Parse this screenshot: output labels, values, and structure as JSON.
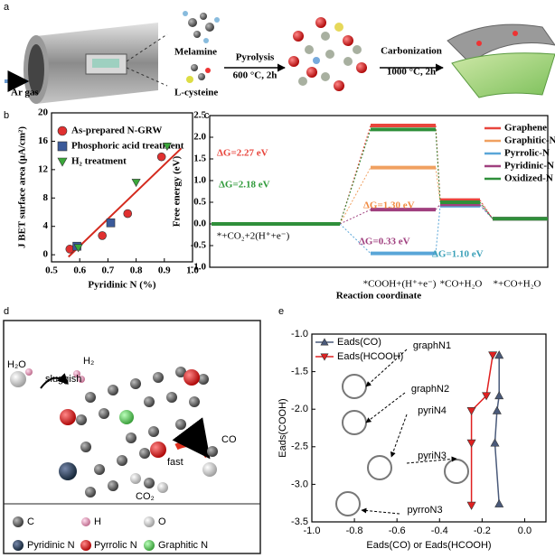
{
  "panels": {
    "a": {
      "label": "a",
      "texts": [
        "Ar gas",
        "Melamine",
        "L-cysteine",
        "Pyrolysis",
        "600 °C, 2h",
        "Carbonization",
        "1000 °C, 2h"
      ]
    },
    "d": {
      "label": "d",
      "texts": [
        "H₂O",
        "H₂",
        "sluggish",
        "fast",
        "CO",
        "CO₂"
      ],
      "legend": [
        "C",
        "H",
        "O",
        "Pyridinic N",
        "Pyrrolic N",
        "Graphitic N"
      ]
    }
  },
  "chart_data": [
    {
      "type": "scatter",
      "label": "b",
      "xlabel": "Pyridinic N (%)",
      "ylabel": "J BET surface area (μA/cm²)",
      "xlim": [
        0.5,
        1.0
      ],
      "xticks": [
        0.5,
        0.6,
        0.7,
        0.8,
        0.9,
        {
          "value": 1.0,
          "label": "1.0"
        }
      ],
      "ylim": [
        -1,
        20
      ],
      "yticks": [
        0,
        4,
        8,
        12,
        16,
        20
      ],
      "series": [
        {
          "name": "As-prepared N-GRW",
          "color": "#e03030",
          "marker": "circle",
          "x": [
            0.565,
            0.68,
            0.77,
            0.89
          ],
          "values": [
            0.8,
            2.7,
            5.8,
            13.8
          ]
        },
        {
          "name": "Phosphoric acid treatment",
          "color": "#3b5a9a",
          "marker": "square",
          "x": [
            0.59,
            0.71
          ],
          "values": [
            1.2,
            4.5
          ]
        },
        {
          "name": "H₂ treatment",
          "color": "#3aa83a",
          "marker": "triangle-down",
          "x": [
            0.595,
            0.8,
            0.91
          ],
          "values": [
            1.0,
            10.2,
            15.3
          ]
        }
      ],
      "fit": {
        "color": "#d42a1e",
        "x": [
          0.56,
          0.96
        ],
        "values": [
          -0.3,
          15
        ]
      }
    },
    {
      "type": "energy-profile",
      "label": "c",
      "xlabel": "Reaction coordinate",
      "ylabel": "Free energy (eV)",
      "categories": [
        "*+CO₂+2(H⁺+e⁻)",
        "*COOH+(H⁺+e⁻)",
        "*CO+H₂O",
        "*+CO+H₂O"
      ],
      "ylim": [
        -1.0,
        2.5
      ],
      "yticks": [
        {
          "value": -1.0,
          "label": "-1.0"
        },
        -0.5,
        {
          "value": 0.0,
          "label": "0.0"
        },
        0.5,
        {
          "value": 1.0,
          "label": "1.0"
        },
        1.5,
        {
          "value": 2.0,
          "label": "2.0"
        },
        2.5
      ],
      "series": [
        {
          "name": "Graphene",
          "color": "#e8453c",
          "values": [
            0,
            2.27,
            0.55,
            0.12
          ]
        },
        {
          "name": "Graphitic-N",
          "color": "#f0a060",
          "values": [
            0,
            1.3,
            0.5,
            0.12
          ]
        },
        {
          "name": "Pyrrolic-N",
          "color": "#5aa6d8",
          "values": [
            0,
            -0.68,
            0.42,
            0.12
          ]
        },
        {
          "name": "Pyridinic-N",
          "color": "#a0407f",
          "values": [
            0,
            0.33,
            0.45,
            0.12
          ]
        },
        {
          "name": "Oxidized-N",
          "color": "#2f8f3a",
          "values": [
            0,
            2.18,
            0.5,
            0.12
          ]
        }
      ],
      "annotations": [
        {
          "text": "ΔG=2.27 eV",
          "color": "#e8453c"
        },
        {
          "text": "ΔG=2.18 eV",
          "color": "#2f9a3a"
        },
        {
          "text": "ΔG=1.30 eV",
          "color": "#f08a40"
        },
        {
          "text": "ΔG=0.33 eV",
          "color": "#a0407f"
        },
        {
          "text": "ΔG=1.10 eV",
          "color": "#3aa0b8"
        }
      ]
    },
    {
      "type": "line",
      "label": "e",
      "xlabel": "Eads(CO) or Eads(HCOOH)",
      "ylabel": "Eads(COOH)",
      "xlim": [
        -1.0,
        0.1
      ],
      "xticks": [
        {
          "value": -1.0,
          "label": "-1.0"
        },
        -0.8,
        -0.6,
        -0.4,
        -0.2,
        {
          "value": 0.0,
          "label": "0.0"
        }
      ],
      "ylim": [
        -3.5,
        -1.0
      ],
      "yticks": [
        -3.5,
        {
          "value": -3.0,
          "label": "-3.0"
        },
        -2.5,
        {
          "value": -2.0,
          "label": "-2.0"
        },
        -1.5,
        {
          "value": -1.0,
          "label": "-1.0"
        }
      ],
      "series": [
        {
          "name": "Eads(CO)",
          "color": "#4a5a7a",
          "marker": "triangle-up",
          "x": [
            -0.12,
            -0.12,
            -0.13,
            -0.14,
            -0.12
          ],
          "values": [
            -1.28,
            -1.82,
            -2.02,
            -2.45,
            -3.26
          ]
        },
        {
          "name": "Eads(HCOOH)",
          "color": "#e02020",
          "marker": "triangle-down",
          "x": [
            -0.15,
            -0.18,
            -0.25,
            -0.25,
            -0.25
          ],
          "values": [
            -1.28,
            -1.82,
            -2.02,
            -2.45,
            -3.28
          ]
        }
      ],
      "point_labels": [
        "graphN1",
        "graphN2",
        "pyriN4",
        "pyriN3",
        "pyrroN3"
      ]
    }
  ]
}
